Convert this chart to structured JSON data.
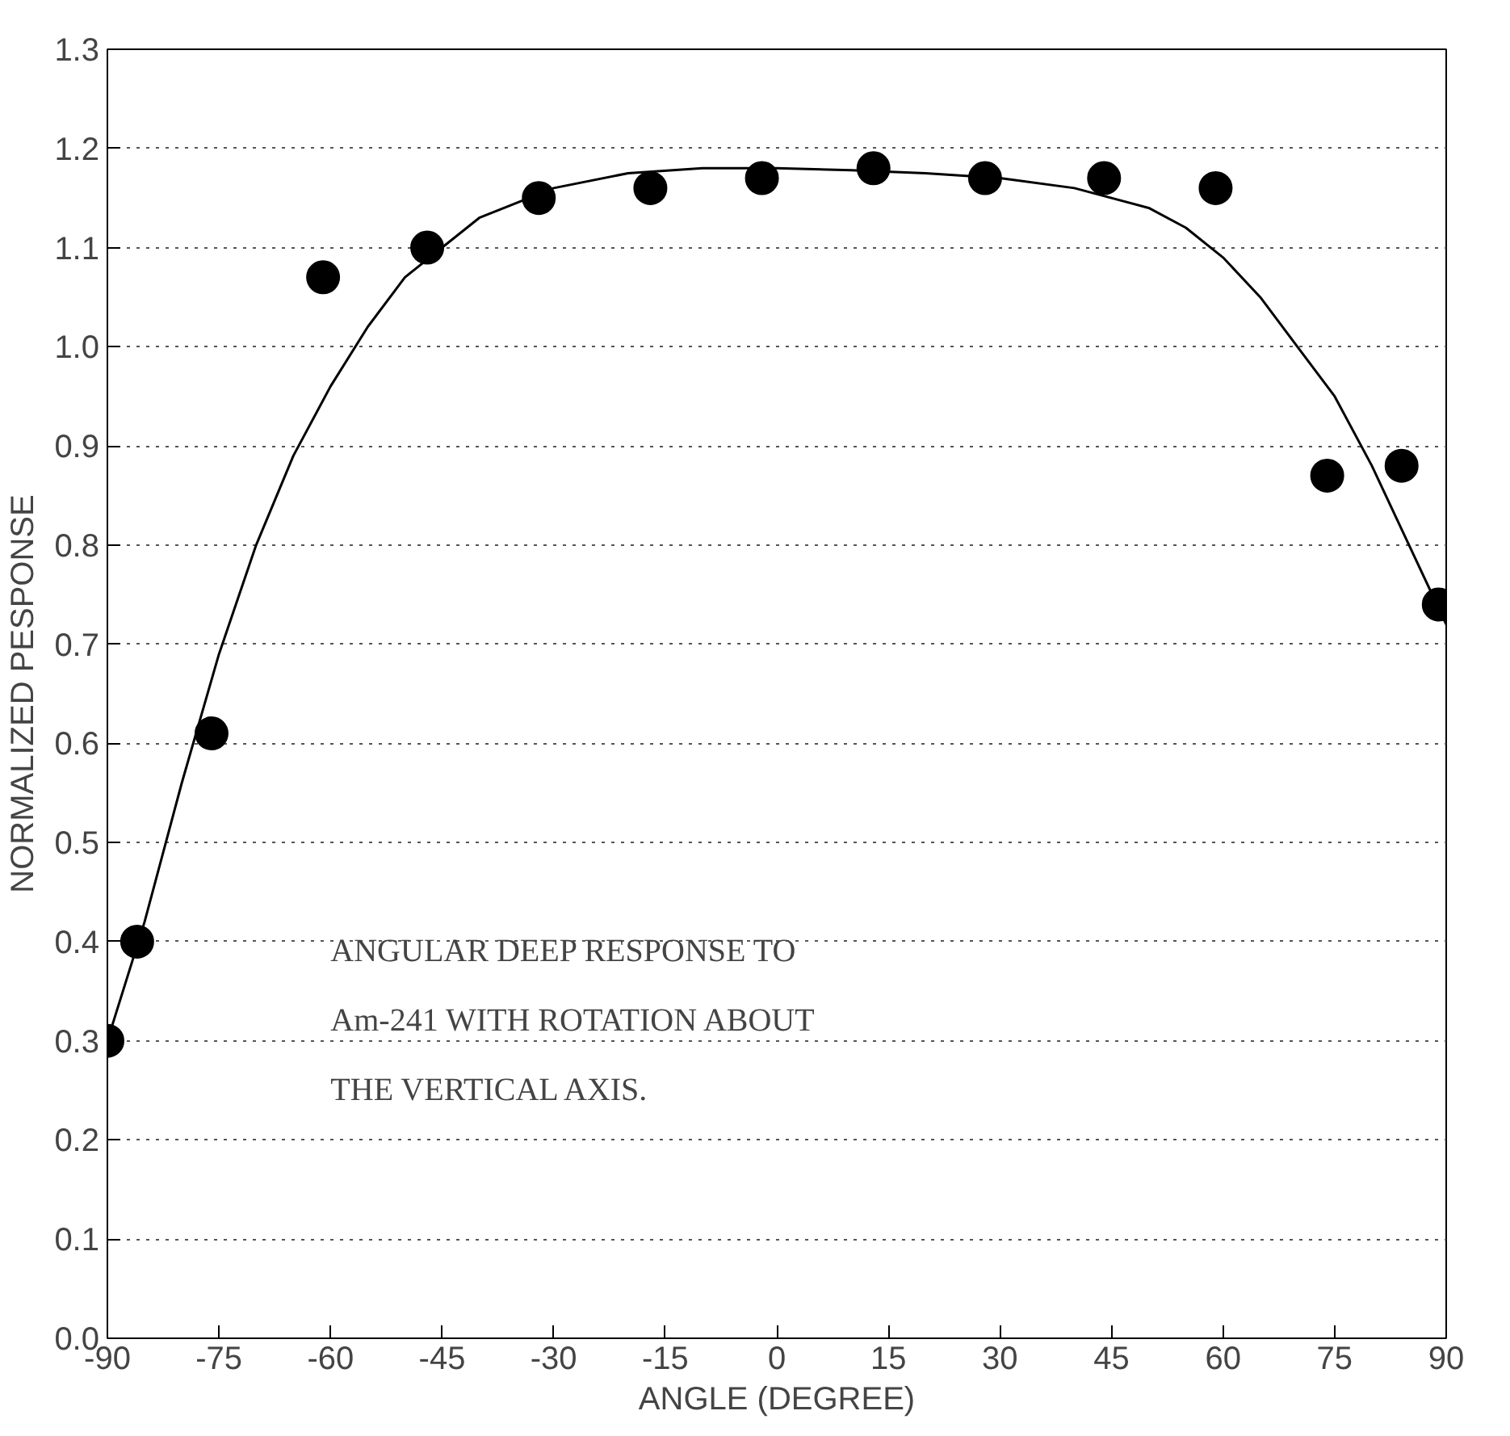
{
  "chart_data": {
    "type": "scatter",
    "xlabel": "ANGLE (DEGREE)",
    "ylabel": "NORMALIZED PESPONSE",
    "xlim": [
      -90,
      90
    ],
    "ylim": [
      0,
      1.3
    ],
    "xticks": [
      -90,
      -75,
      -60,
      -45,
      -30,
      -15,
      0,
      15,
      30,
      45,
      60,
      75,
      90
    ],
    "yticks": [
      {
        "value": 0,
        "label": "0.0"
      },
      0.1,
      0.2,
      0.3,
      0.4,
      0.5,
      0.6,
      0.7,
      0.8,
      0.9,
      {
        "value": 1,
        "label": "1.0"
      },
      1.1,
      1.2,
      1.3
    ],
    "grid": "y",
    "annotations": [
      "ANGULAR DEEP RESPONSE TO\nAm-241 WITH ROTATION ABOUT\nTHE VERTICAL AXIS."
    ],
    "series": [
      {
        "marker": "circle",
        "color": "#000000",
        "x": [
          -90,
          -86,
          -76,
          -61,
          -47,
          -32,
          -17,
          -2,
          13,
          28,
          44,
          59,
          74,
          84,
          89
        ],
        "values": [
          0.3,
          0.4,
          0.61,
          1.07,
          1.1,
          1.15,
          1.16,
          1.17,
          1.18,
          1.17,
          1.17,
          1.16,
          0.87,
          0.88,
          0.74
        ]
      },
      {
        "type": "line",
        "color": "#000000",
        "x": [
          -90,
          -85,
          -80,
          -75,
          -70,
          -65,
          -60,
          -55,
          -50,
          -45,
          -40,
          -30,
          -20,
          -10,
          0,
          10,
          20,
          30,
          40,
          50,
          55,
          60,
          65,
          70,
          75,
          80,
          85,
          90
        ],
        "values": [
          0.3,
          0.42,
          0.56,
          0.69,
          0.8,
          0.89,
          0.96,
          1.02,
          1.07,
          1.1,
          1.13,
          1.16,
          1.175,
          1.18,
          1.18,
          1.178,
          1.175,
          1.17,
          1.16,
          1.14,
          1.12,
          1.09,
          1.05,
          1.0,
          0.95,
          0.88,
          0.8,
          0.72
        ]
      }
    ]
  }
}
